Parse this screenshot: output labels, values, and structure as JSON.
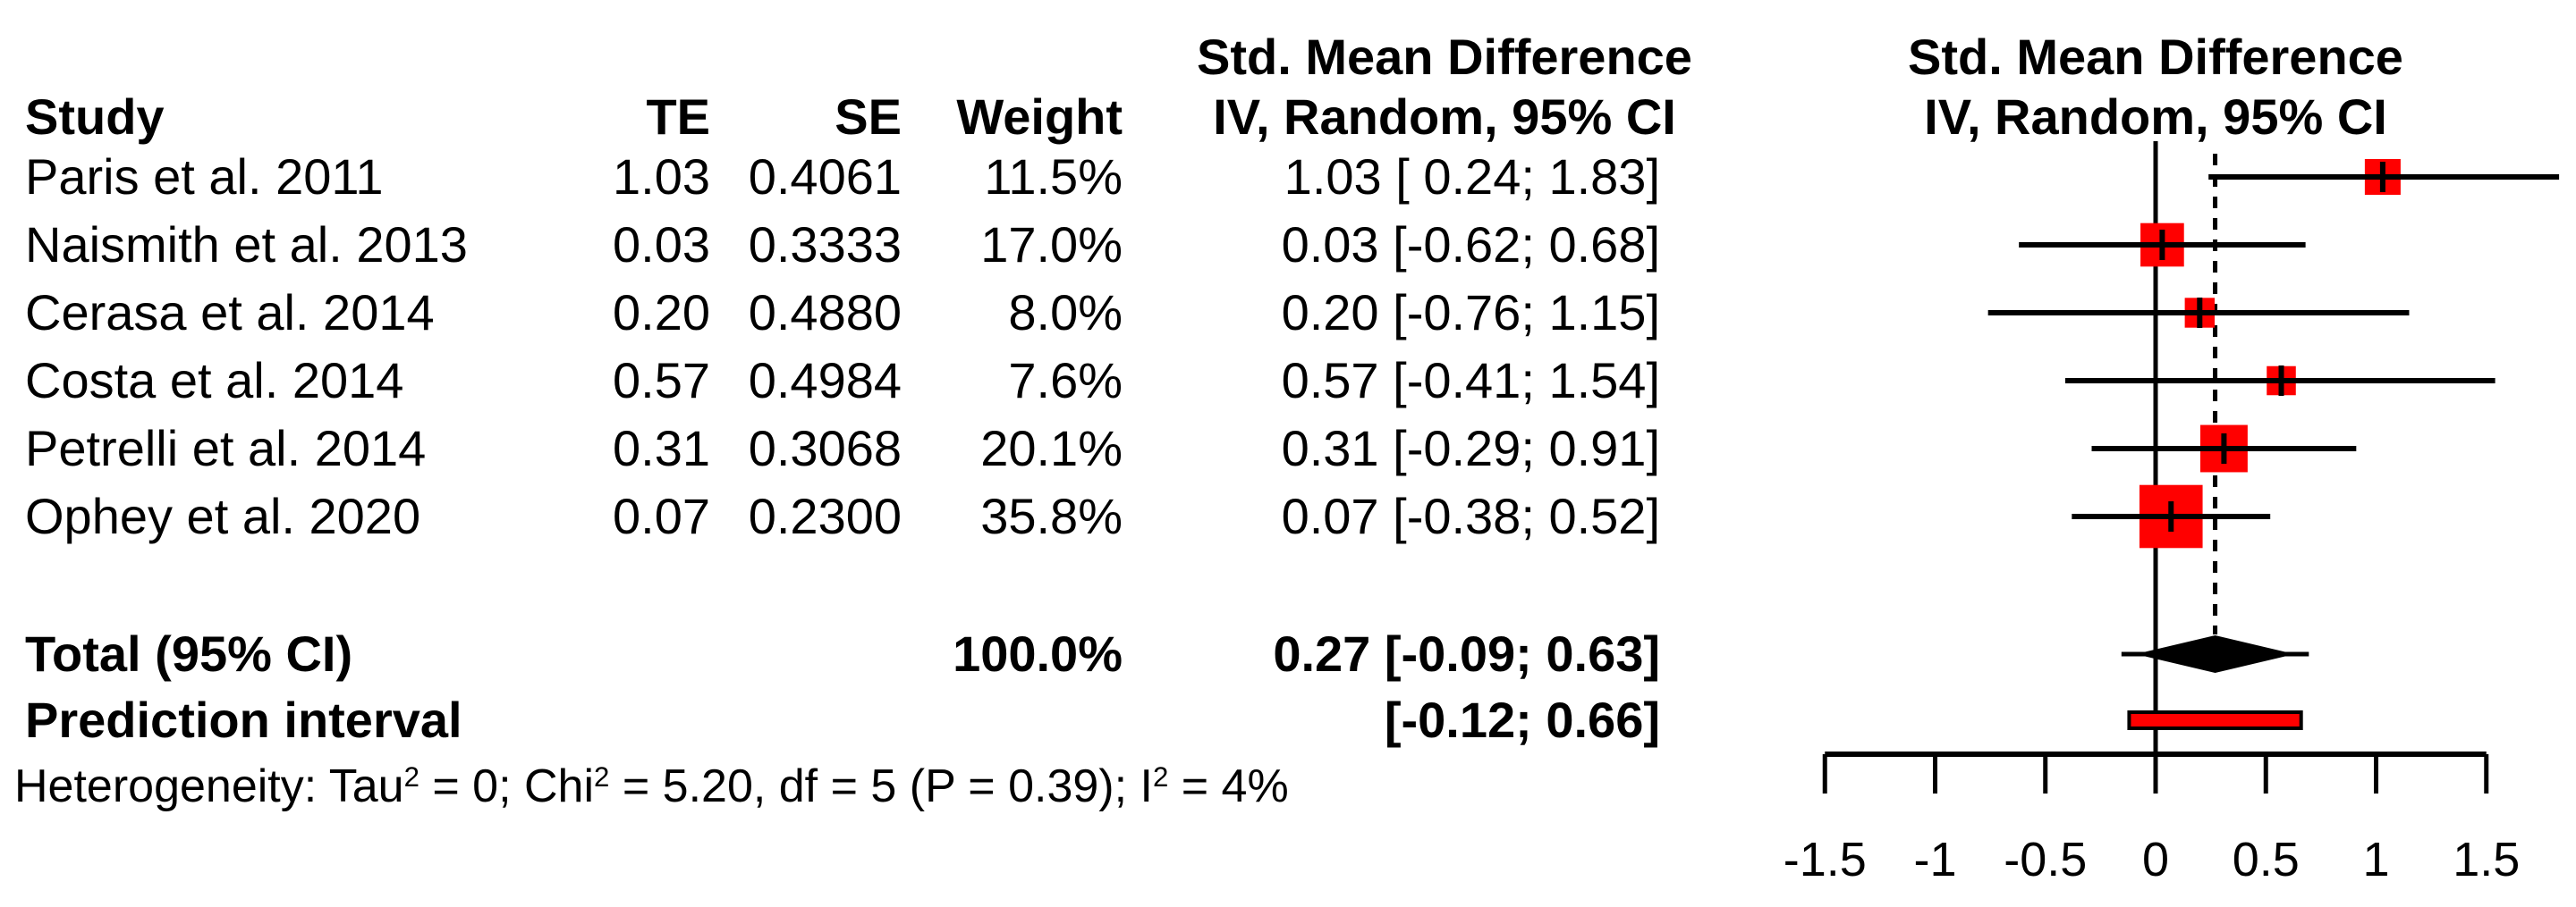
{
  "headers": {
    "smd_left": "Std. Mean Difference",
    "method_left": "IV, Random, 95% CI",
    "smd_right": "Std. Mean Difference",
    "method_right": "IV, Random, 95% CI",
    "study": "Study",
    "te": "TE",
    "se": "SE",
    "weight": "Weight"
  },
  "table": {
    "rows": [
      {
        "study": "Paris et al. 2011",
        "te": "1.03",
        "se": "0.4061",
        "weight": "11.5%",
        "ci": "1.03 [ 0.24; 1.83]"
      },
      {
        "study": "Naismith et al. 2013",
        "te": "0.03",
        "se": "0.3333",
        "weight": "17.0%",
        "ci": "0.03 [-0.62; 0.68]"
      },
      {
        "study": "Cerasa et al. 2014",
        "te": "0.20",
        "se": "0.4880",
        "weight": "8.0%",
        "ci": "0.20 [-0.76; 1.15]"
      },
      {
        "study": "Costa et al. 2014",
        "te": "0.57",
        "se": "0.4984",
        "weight": "7.6%",
        "ci": "0.57 [-0.41; 1.54]"
      },
      {
        "study": "Petrelli et al. 2014",
        "te": "0.31",
        "se": "0.3068",
        "weight": "20.1%",
        "ci": "0.31 [-0.29; 0.91]"
      },
      {
        "study": "Ophey et al. 2020",
        "te": "0.07",
        "se": "0.2300",
        "weight": "35.8%",
        "ci": "0.07 [-0.38; 0.52]"
      }
    ]
  },
  "total_row": {
    "label": "Total (95% CI)",
    "weight": "100.0%",
    "ci": "0.27 [-0.09; 0.63]"
  },
  "prediction_row": {
    "label": "Prediction interval",
    "ci": "[-0.12; 0.66]"
  },
  "heterogeneity": {
    "part1": "Heterogeneity: Tau",
    "sup1": "2",
    "part2": " = 0; Chi",
    "sup2": "2",
    "part3": " = 5.20, df = 5 (P = 0.39); I",
    "sup3": "2",
    "part4": " = 4%"
  },
  "chart_data": {
    "type": "forest",
    "title": "Std. Mean Difference",
    "method_label": "IV, Random, 95% CI",
    "x_axis": {
      "ticks": [
        -1.5,
        -1,
        -0.5,
        0,
        0.5,
        1,
        1.5
      ],
      "tick_labels": [
        "-1.5",
        "-1",
        "-0.5",
        "0",
        "0.5",
        "1",
        "1.5"
      ],
      "range_shown": [
        -1.5,
        1.83
      ],
      "grid": false
    },
    "zero_line": 0,
    "pooled_dashed_line": 0.27,
    "studies": [
      {
        "name": "Paris et al. 2011",
        "te": 1.03,
        "se": 0.4061,
        "weight_pct": 11.5,
        "ci": [
          0.24,
          1.83
        ]
      },
      {
        "name": "Naismith et al. 2013",
        "te": 0.03,
        "se": 0.3333,
        "weight_pct": 17.0,
        "ci": [
          -0.62,
          0.68
        ]
      },
      {
        "name": "Cerasa et al. 2014",
        "te": 0.2,
        "se": 0.488,
        "weight_pct": 8.0,
        "ci": [
          -0.76,
          1.15
        ]
      },
      {
        "name": "Costa et al. 2014",
        "te": 0.57,
        "se": 0.4984,
        "weight_pct": 7.6,
        "ci": [
          -0.41,
          1.54
        ]
      },
      {
        "name": "Petrelli et al. 2014",
        "te": 0.31,
        "se": 0.3068,
        "weight_pct": 20.1,
        "ci": [
          -0.29,
          0.91
        ]
      },
      {
        "name": "Ophey et al. 2020",
        "te": 0.07,
        "se": 0.23,
        "weight_pct": 35.8,
        "ci": [
          -0.38,
          0.52
        ]
      }
    ],
    "total": {
      "label": "Total (95% CI)",
      "estimate": 0.27,
      "ci": [
        -0.09,
        0.63
      ],
      "weight_pct": 100.0
    },
    "prediction_interval": {
      "ci": [
        -0.12,
        0.66
      ]
    },
    "heterogeneity_text": "Heterogeneity: Tau2 = 0; Chi2 = 5.20, df = 5 (P = 0.39); I2 = 4%",
    "colors": {
      "square": "#ff0000",
      "prediction_fill": "#ff0000",
      "diamond": "#000000",
      "line": "#000000",
      "text": "#000000"
    },
    "legend_position": "none"
  }
}
